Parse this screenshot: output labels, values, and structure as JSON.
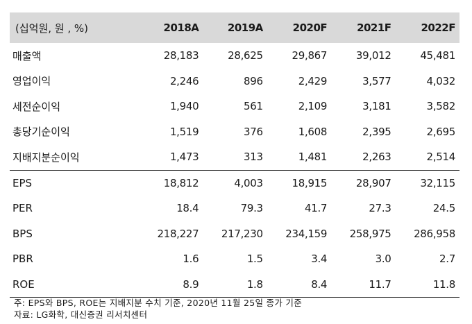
{
  "table": {
    "unit_label": "(십억원, 원 , %)",
    "columns": [
      "2018A",
      "2019A",
      "2020F",
      "2021F",
      "2022F"
    ],
    "rows": [
      {
        "label": "매출액",
        "values": [
          "28,183",
          "28,625",
          "29,867",
          "39,012",
          "45,481"
        ]
      },
      {
        "label": "영업이익",
        "values": [
          "2,246",
          "896",
          "2,429",
          "3,577",
          "4,032"
        ]
      },
      {
        "label": "세전순이익",
        "values": [
          "1,940",
          "561",
          "2,109",
          "3,181",
          "3,582"
        ]
      },
      {
        "label": "총당기순이익",
        "values": [
          "1,519",
          "376",
          "1,608",
          "2,395",
          "2,695"
        ]
      },
      {
        "label": "지배지분순이익",
        "values": [
          "1,473",
          "313",
          "1,481",
          "2,263",
          "2,514"
        ]
      },
      {
        "label": "EPS",
        "values": [
          "18,812",
          "4,003",
          "18,915",
          "28,907",
          "32,115"
        ]
      },
      {
        "label": "PER",
        "values": [
          "18.4",
          "79.3",
          "41.7",
          "27.3",
          "24.5"
        ]
      },
      {
        "label": "BPS",
        "values": [
          "218,227",
          "217,230",
          "234,159",
          "258,975",
          "286,958"
        ]
      },
      {
        "label": "PBR",
        "values": [
          "1.6",
          "1.5",
          "3.4",
          "3.0",
          "2.7"
        ]
      },
      {
        "label": "ROE",
        "values": [
          "8.9",
          "1.8",
          "8.4",
          "11.7",
          "11.8"
        ]
      }
    ]
  },
  "notes": {
    "note": "주: EPS와 BPS, ROE는 지배지분 수치 기준, 2020년 11월 25일 종가 기준",
    "source": "자료: LG화학, 대신증권 리서치센터"
  }
}
